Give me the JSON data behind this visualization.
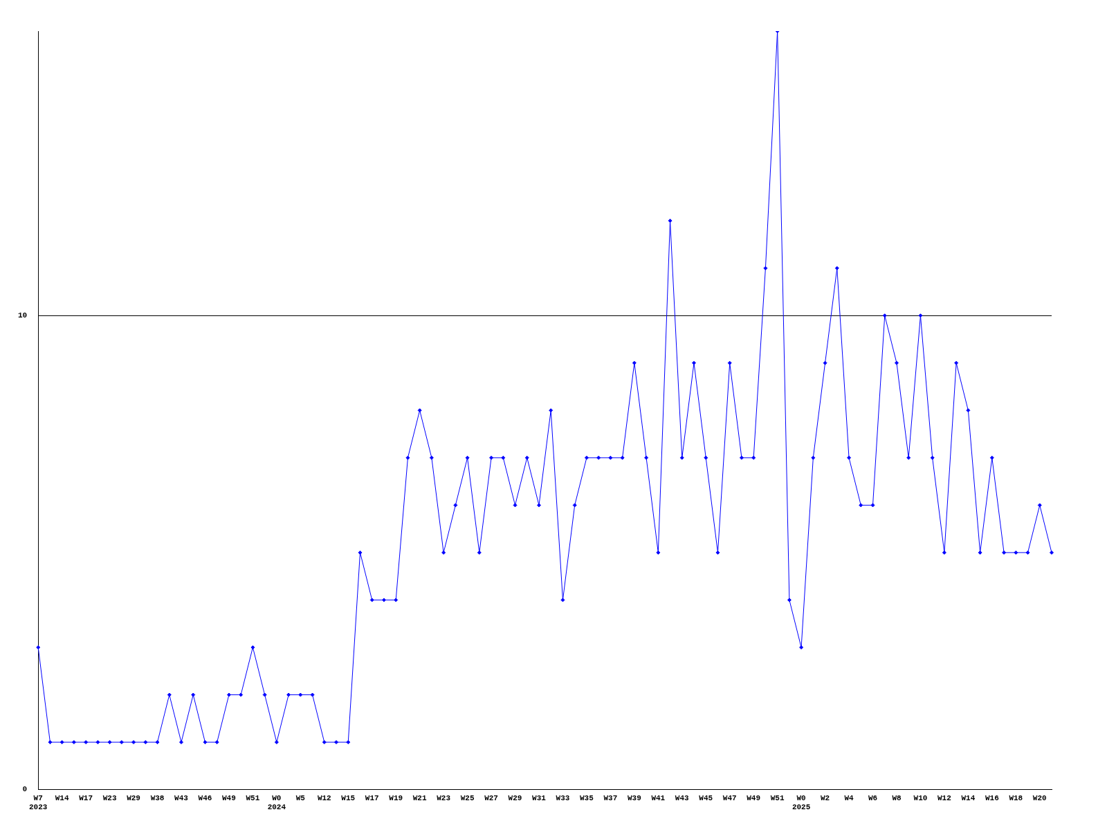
{
  "chart_data": {
    "type": "line",
    "categories": [
      "W7\n2023",
      null,
      "W14",
      null,
      "W17",
      null,
      "W23",
      null,
      "W29",
      null,
      "W38",
      null,
      "W43",
      null,
      "W46",
      null,
      "W49",
      null,
      "W51",
      null,
      "W0\n2024",
      null,
      "W5",
      null,
      "W12",
      null,
      "W15",
      null,
      "W17",
      null,
      "W19",
      null,
      "W21",
      null,
      "W23",
      null,
      "W25",
      null,
      "W27",
      null,
      "W29",
      null,
      "W31",
      null,
      "W33",
      null,
      "W35",
      null,
      "W37",
      null,
      "W39",
      null,
      "W41",
      null,
      "W43",
      null,
      "W45",
      null,
      "W47",
      null,
      "W49",
      null,
      "W51",
      null,
      "W0\n2025",
      null,
      "W2",
      null,
      "W4",
      null,
      "W6",
      null,
      "W8",
      null,
      "W10",
      null,
      "W12",
      null,
      "W14",
      null,
      "W16",
      null,
      "W18",
      null,
      "W20",
      null
    ],
    "series": [
      {
        "color": "#0000ff",
        "values": [
          3,
          1,
          1,
          1,
          1,
          1,
          1,
          1,
          1,
          1,
          1,
          2,
          1,
          2,
          1,
          1,
          2,
          2,
          3,
          2,
          1,
          2,
          2,
          2,
          1,
          1,
          1,
          5,
          4,
          4,
          4,
          7,
          8,
          7,
          5,
          6,
          7,
          5,
          7,
          7,
          6,
          7,
          6,
          8,
          4,
          6,
          7,
          7,
          7,
          7,
          9,
          7,
          5,
          12,
          7,
          9,
          7,
          5,
          9,
          7,
          7,
          11,
          16,
          4,
          3,
          7,
          9,
          11,
          7,
          6,
          6,
          10,
          9,
          7,
          10,
          7,
          5,
          9,
          8,
          5,
          7,
          5,
          5,
          5,
          6,
          5
        ]
      }
    ],
    "ylim": [
      0,
      16
    ],
    "yticks": [
      0,
      10
    ],
    "grid": "y",
    "legend": false,
    "marker": "diamond",
    "line_style": "solid"
  }
}
